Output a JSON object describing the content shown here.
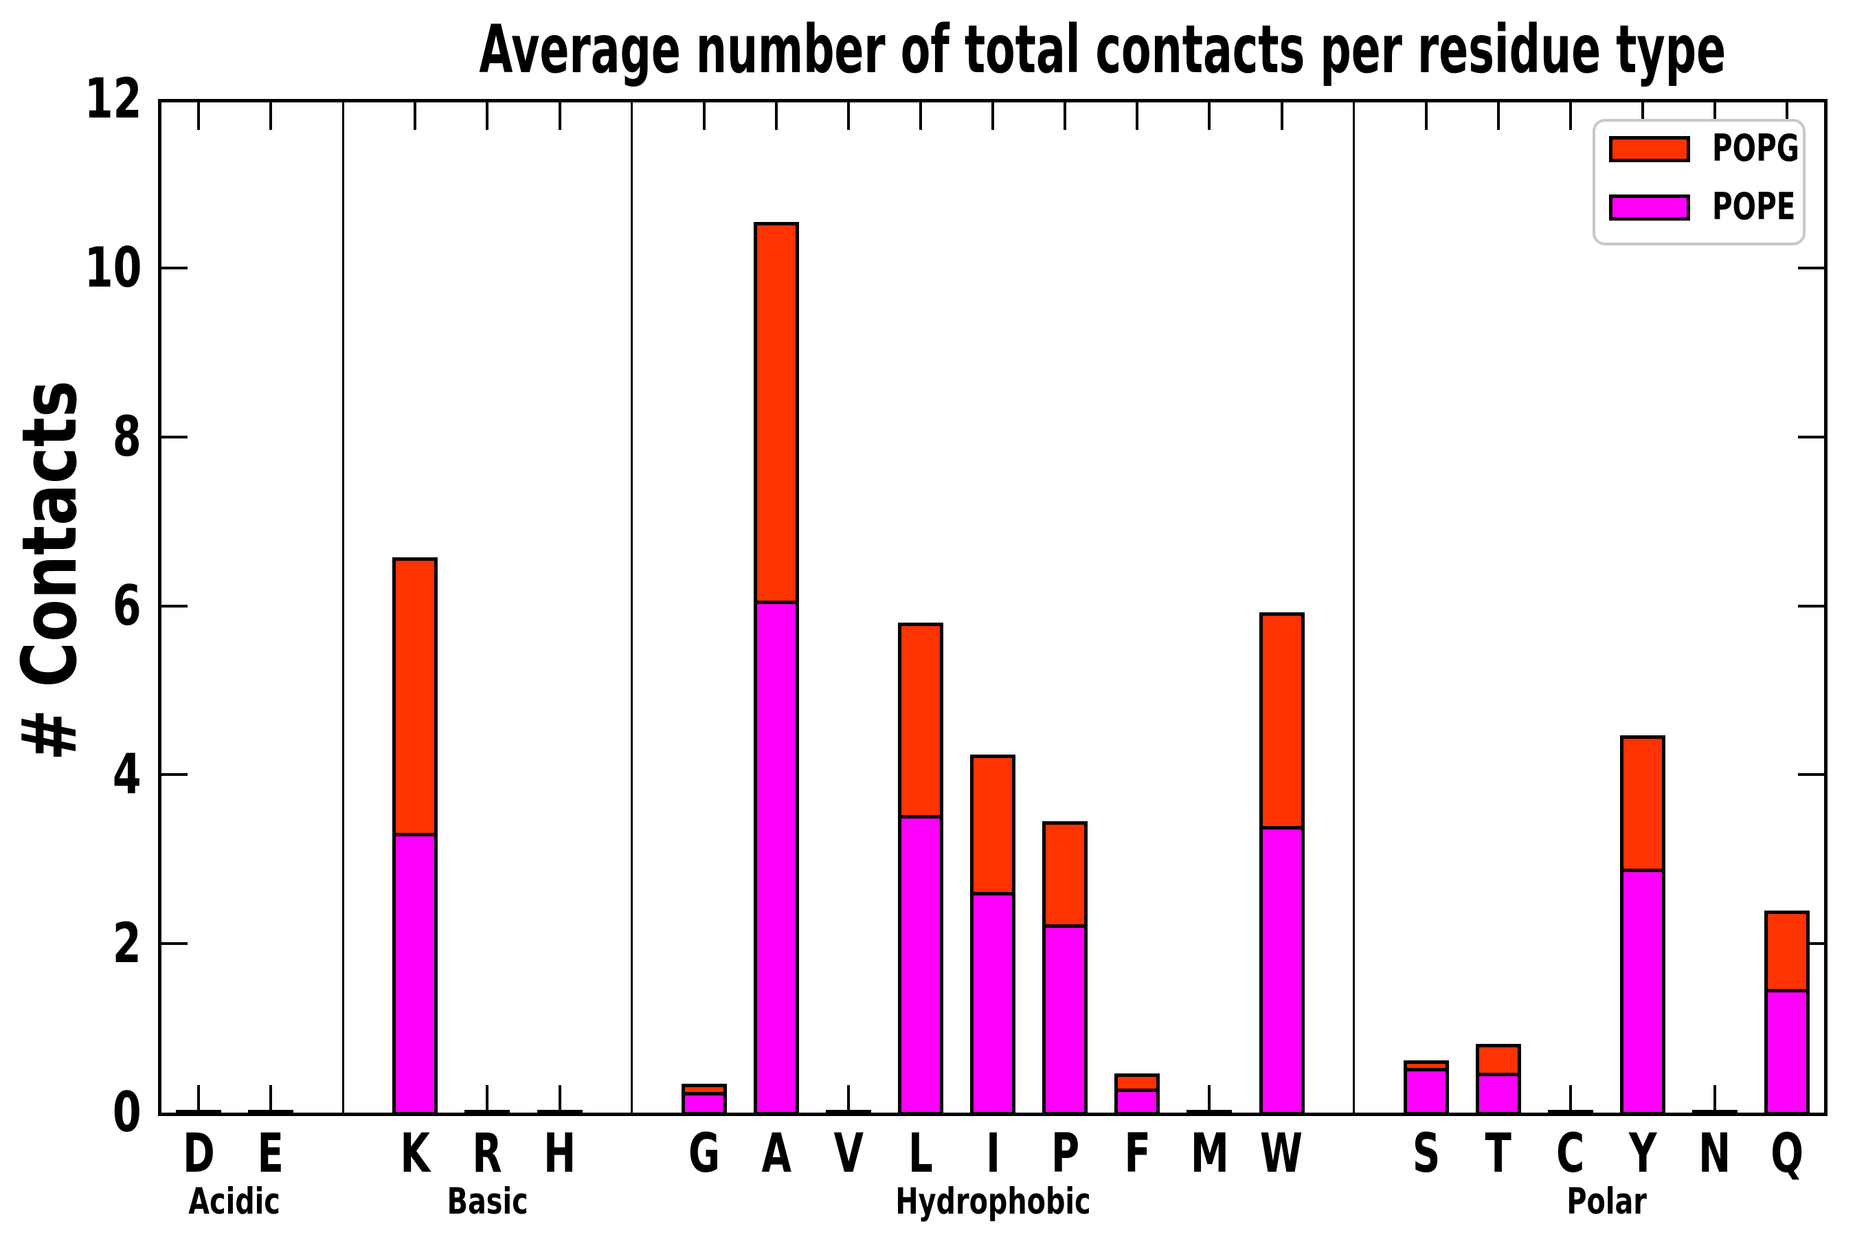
{
  "title": "Average number of total contacts per residue type",
  "y_axis": {
    "label": "# Contacts",
    "min": 0,
    "max": 12,
    "tick_step": 2,
    "tick_values": [
      0,
      2,
      4,
      6,
      8,
      10,
      12
    ]
  },
  "legend": {
    "position": "upper right",
    "items": [
      {
        "label": "POPG",
        "color": "#FF3300"
      },
      {
        "label": "POPE",
        "color": "#FF00FF"
      }
    ]
  },
  "colors": {
    "pope": "#FF00FF",
    "popg": "#FF3300",
    "bar_edge": "#000000",
    "axis": "#000000",
    "legend_border": "#C8C8C8",
    "background": "#FFFFFF"
  },
  "groups": [
    {
      "name": "Acidic",
      "residues": [
        "D",
        "E"
      ]
    },
    {
      "name": "Basic",
      "residues": [
        "K",
        "R",
        "H"
      ]
    },
    {
      "name": "Hydrophobic",
      "residues": [
        "G",
        "A",
        "V",
        "L",
        "I",
        "P",
        "F",
        "M",
        "W"
      ]
    },
    {
      "name": "Polar",
      "residues": [
        "S",
        "T",
        "C",
        "Y",
        "N",
        "Q"
      ]
    }
  ],
  "chart_data": {
    "type": "bar",
    "stacked": true,
    "grid": false,
    "ylim": [
      0,
      12
    ],
    "legend_position": "upper right",
    "categories": [
      "D",
      "E",
      "K",
      "R",
      "H",
      "G",
      "A",
      "V",
      "L",
      "I",
      "P",
      "F",
      "M",
      "W",
      "S",
      "T",
      "C",
      "Y",
      "N",
      "Q"
    ],
    "category_groups": [
      "Acidic",
      "Acidic",
      "Basic",
      "Basic",
      "Basic",
      "Hydrophobic",
      "Hydrophobic",
      "Hydrophobic",
      "Hydrophobic",
      "Hydrophobic",
      "Hydrophobic",
      "Hydrophobic",
      "Hydrophobic",
      "Hydrophobic",
      "Polar",
      "Polar",
      "Polar",
      "Polar",
      "Polar",
      "Polar"
    ],
    "series": [
      {
        "name": "POPE",
        "color": "#FF00FF",
        "values": [
          0.01,
          0.01,
          3.25,
          0.01,
          0.01,
          0.18,
          6.0,
          0.01,
          3.46,
          2.55,
          2.17,
          0.22,
          0.01,
          3.33,
          0.47,
          0.41,
          0.01,
          2.83,
          0.01,
          1.4
        ]
      },
      {
        "name": "POPG",
        "color": "#FF3300",
        "values": [
          0.01,
          0.01,
          3.32,
          0.01,
          0.01,
          0.16,
          4.54,
          0.01,
          2.34,
          1.69,
          1.28,
          0.24,
          0.01,
          2.59,
          0.15,
          0.4,
          0.01,
          1.64,
          0.01,
          0.99
        ]
      }
    ],
    "totals": [
      0.02,
      0.02,
      6.57,
      0.02,
      0.02,
      0.34,
      10.54,
      0.02,
      5.8,
      4.24,
      3.45,
      0.46,
      0.02,
      5.92,
      0.62,
      0.81,
      0.02,
      4.47,
      0.02,
      2.39
    ]
  }
}
